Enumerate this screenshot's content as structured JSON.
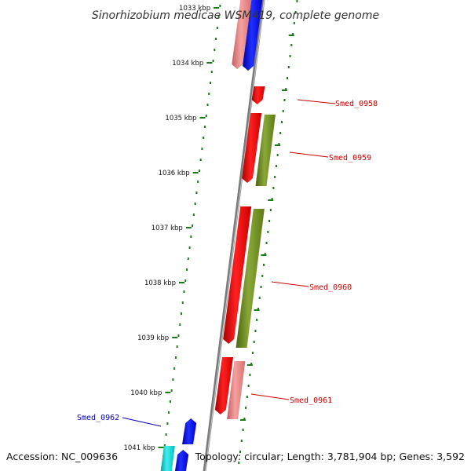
{
  "title": "Sinorhizobium medicae WSM419, complete genome",
  "footer": {
    "accession": "Accession: NC_009636",
    "summary": "Topology: circular; Length: 3,781,904 bp; Genes: 3,592"
  },
  "axis": {
    "tick_labels": [
      "1033 kbp",
      "1034 kbp",
      "1035 kbp",
      "1036 kbp",
      "1037 kbp",
      "1038 kbp",
      "1039 kbp",
      "1040 kbp",
      "1041 kbp"
    ]
  },
  "gene_labels": [
    {
      "text": "Smed_0958",
      "color": "#cc0000"
    },
    {
      "text": "Smed_0959",
      "color": "#cc0000"
    },
    {
      "text": "Smed_0960",
      "color": "#cc0000"
    },
    {
      "text": "Smed_0961",
      "color": "#cc0000"
    },
    {
      "text": "Smed_0962",
      "color": "#0000bb"
    }
  ],
  "colors": {
    "backbone": "#888888",
    "tick": "#1a7a1a",
    "red": "#ee0000",
    "pink": "#ee8888",
    "blue": "#0000ee",
    "olive": "#6e8c20",
    "cyan": "#00cccc"
  }
}
